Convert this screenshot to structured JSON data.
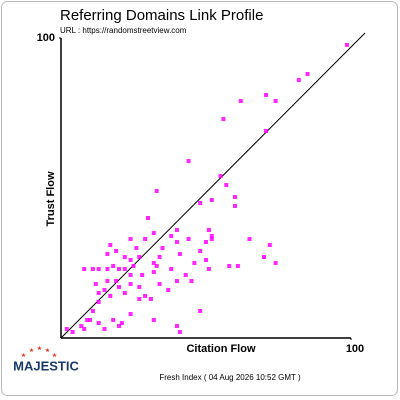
{
  "chart_data": {
    "type": "scatter",
    "title": "Referring Domains Link Profile",
    "subtitle": "URL : https://randomstreetview.com",
    "x_label": "Citation Flow",
    "y_label": "Trust Flow",
    "color": "#ff00ff",
    "xlim": [
      0,
      100
    ],
    "ylim": [
      0,
      100
    ],
    "xticks": [
      100
    ],
    "yticks": [
      100
    ],
    "x": [
      98.6,
      85,
      82,
      70.7,
      74,
      62,
      70.7,
      56,
      44,
      55,
      57,
      60,
      33,
      48,
      52,
      60,
      51,
      52,
      50,
      65,
      72,
      70,
      74,
      61,
      58,
      51,
      46,
      44,
      41,
      40,
      38,
      34,
      32,
      30,
      29,
      27,
      25,
      24,
      22,
      20,
      18,
      16,
      13,
      11,
      8,
      16,
      26,
      32,
      34,
      37,
      40,
      45,
      48,
      40,
      41,
      32,
      29,
      27,
      24,
      22,
      19,
      17,
      15,
      13,
      11,
      9,
      7,
      4,
      2,
      18,
      21,
      13,
      15,
      24,
      27,
      24,
      20,
      16,
      13,
      12,
      17,
      24,
      28,
      10,
      8,
      20,
      31,
      38,
      43,
      50,
      48,
      52,
      40,
      32,
      35,
      22,
      19,
      33
    ],
    "values": [
      97.7,
      88,
      86,
      81,
      79,
      79,
      69,
      73,
      59,
      54,
      51,
      47,
      49,
      45,
      46,
      44,
      36,
      33,
      32,
      33,
      31,
      27,
      25,
      24,
      24,
      23,
      25,
      33,
      28,
      36,
      34,
      27,
      25,
      40,
      33,
      27,
      24,
      26,
      27,
      23,
      24,
      23,
      23,
      23,
      23,
      28,
      30,
      22,
      18,
      16,
      19,
      19,
      9,
      4,
      2,
      6,
      14,
      17,
      18,
      15,
      19,
      14,
      16,
      12,
      9,
      6,
      4,
      2,
      3,
      6,
      5,
      5,
      3,
      8,
      13,
      21,
      17,
      19,
      15,
      18,
      31,
      33,
      21,
      6,
      3,
      4,
      13,
      23,
      21,
      26,
      29,
      34,
      32,
      35,
      30,
      23,
      29,
      24
    ]
  },
  "branding": {
    "logo": "MAJESTIC",
    "footer": "Fresh Index ( 04 Aug 2026 10:52 GMT )"
  }
}
